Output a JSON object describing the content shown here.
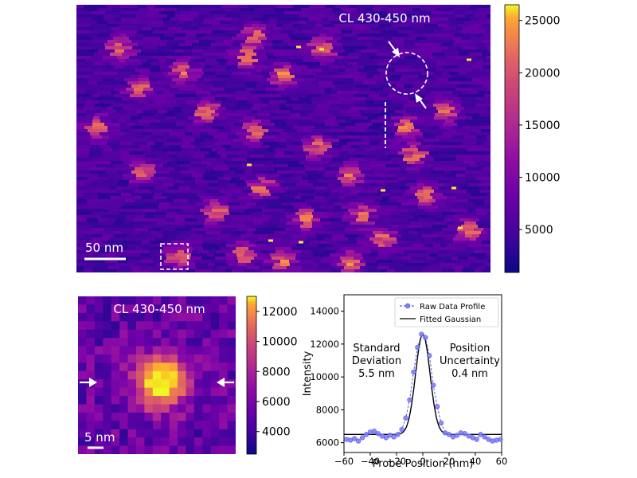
{
  "chart_data": [
    {
      "type": "heatmap",
      "title": "CL 430-450 nm",
      "scale_bar": "50 nm",
      "colormap": "plasma",
      "colorbar": {
        "range": [
          900,
          26500
        ],
        "ticks": [
          5000,
          10000,
          15000,
          20000,
          25000
        ]
      },
      "annotations": [
        "dashed-circle-with-arrows",
        "dashed-vertical-line",
        "dashed-box-roi"
      ]
    },
    {
      "type": "heatmap",
      "title": "CL 430-450 nm",
      "scale_bar": "5 nm",
      "colormap": "plasma",
      "colorbar": {
        "range": [
          2500,
          13000
        ],
        "ticks": [
          4000,
          6000,
          8000,
          10000,
          12000
        ]
      },
      "annotations": [
        "left-arrow",
        "right-arrow"
      ]
    },
    {
      "type": "line",
      "xlabel": "Probe Position (nm)",
      "ylabel": "Intensity",
      "xlim": [
        -60,
        60
      ],
      "ylim": [
        5400,
        15000
      ],
      "xticks": [
        -60,
        -40,
        -20,
        0,
        20,
        40,
        60
      ],
      "yticks": [
        6000,
        8000,
        10000,
        12000,
        14000
      ],
      "legend": [
        "Raw Data Profile",
        "Fitted Gaussian"
      ],
      "legend_position": "top-right",
      "series": [
        {
          "name": "Raw Data Profile",
          "x": [
            -58,
            -55,
            -52,
            -49,
            -46,
            -43,
            -40,
            -37,
            -34,
            -31,
            -28,
            -25,
            -22,
            -19,
            -16,
            -13,
            -10,
            -7,
            -4,
            -1,
            2,
            5,
            8,
            11,
            14,
            17,
            20,
            23,
            26,
            29,
            32,
            35,
            38,
            41,
            44,
            47,
            50,
            53,
            56,
            59
          ],
          "y": [
            6200,
            6150,
            6250,
            6100,
            6300,
            6500,
            6650,
            6700,
            6550,
            6400,
            6300,
            6450,
            6350,
            6500,
            6800,
            7500,
            8600,
            10300,
            11800,
            12600,
            12400,
            11300,
            9500,
            8200,
            7200,
            6600,
            6500,
            6350,
            6450,
            6600,
            6550,
            6400,
            6300,
            6200,
            6500,
            6350,
            6200,
            6100,
            6150,
            6200
          ]
        },
        {
          "name": "Fitted Gaussian",
          "baseline": 6500,
          "amplitude": 6100,
          "center": 0,
          "sigma": 5.5
        }
      ],
      "annotations": [
        {
          "lines": [
            "Standard",
            "Deviation",
            "5.5 nm"
          ]
        },
        {
          "lines": [
            "Position",
            "Uncertainty",
            "0.4 nm"
          ]
        }
      ]
    }
  ]
}
